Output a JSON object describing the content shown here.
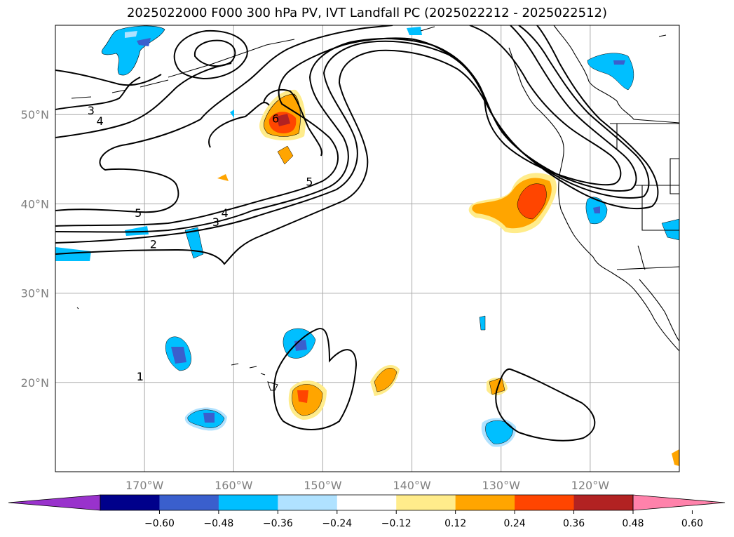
{
  "title": "2025022000 F000 300 hPa PV, IVT Landfall PC (2025022212 - 2025022512)",
  "map": {
    "projection": "PlateCarree",
    "lon_range": [
      -180,
      -110
    ],
    "lat_range": [
      10,
      60
    ],
    "grid": true,
    "lat_ticks": [
      {
        "value": 20,
        "label": "20°N"
      },
      {
        "value": 30,
        "label": "30°N"
      },
      {
        "value": 40,
        "label": "40°N"
      },
      {
        "value": 50,
        "label": "50°N"
      }
    ],
    "lon_ticks": [
      {
        "value": -170,
        "label": "170°W"
      },
      {
        "value": -160,
        "label": "160°W"
      },
      {
        "value": -150,
        "label": "150°W"
      },
      {
        "value": -140,
        "label": "140°W"
      },
      {
        "value": -130,
        "label": "130°W"
      },
      {
        "value": -120,
        "label": "120°W"
      }
    ]
  },
  "pv_contour_labels": [
    {
      "text": "1",
      "lon": -170.5,
      "lat": 20.7
    },
    {
      "text": "1",
      "lon": -170.5,
      "lat": 20.7
    },
    {
      "text": "2",
      "lon": -169.0,
      "lat": 35.5
    },
    {
      "text": "3",
      "lon": -176.0,
      "lat": 50.5
    },
    {
      "text": "3",
      "lon": -162.0,
      "lat": 38.0
    },
    {
      "text": "4",
      "lon": -175.0,
      "lat": 49.3
    },
    {
      "text": "4",
      "lon": -161.0,
      "lat": 39.0
    },
    {
      "text": "5",
      "lon": -170.7,
      "lat": 39.0
    },
    {
      "text": "5",
      "lon": -151.5,
      "lat": 42.5
    },
    {
      "text": "6",
      "lon": -155.3,
      "lat": 49.6
    }
  ],
  "colorbar": {
    "colors": [
      "#9932cc",
      "#00008b",
      "#3a5fcd",
      "#00bfff",
      "#b0e2ff",
      "#ffffff",
      "#ffec8b",
      "#ffa500",
      "#ff4500",
      "#b22222",
      "#ff82ab"
    ],
    "labels": [
      "−0.60",
      "−0.48",
      "−0.36",
      "−0.24",
      "−0.12",
      "0.12",
      "0.24",
      "0.36",
      "0.48",
      "0.60"
    ]
  }
}
